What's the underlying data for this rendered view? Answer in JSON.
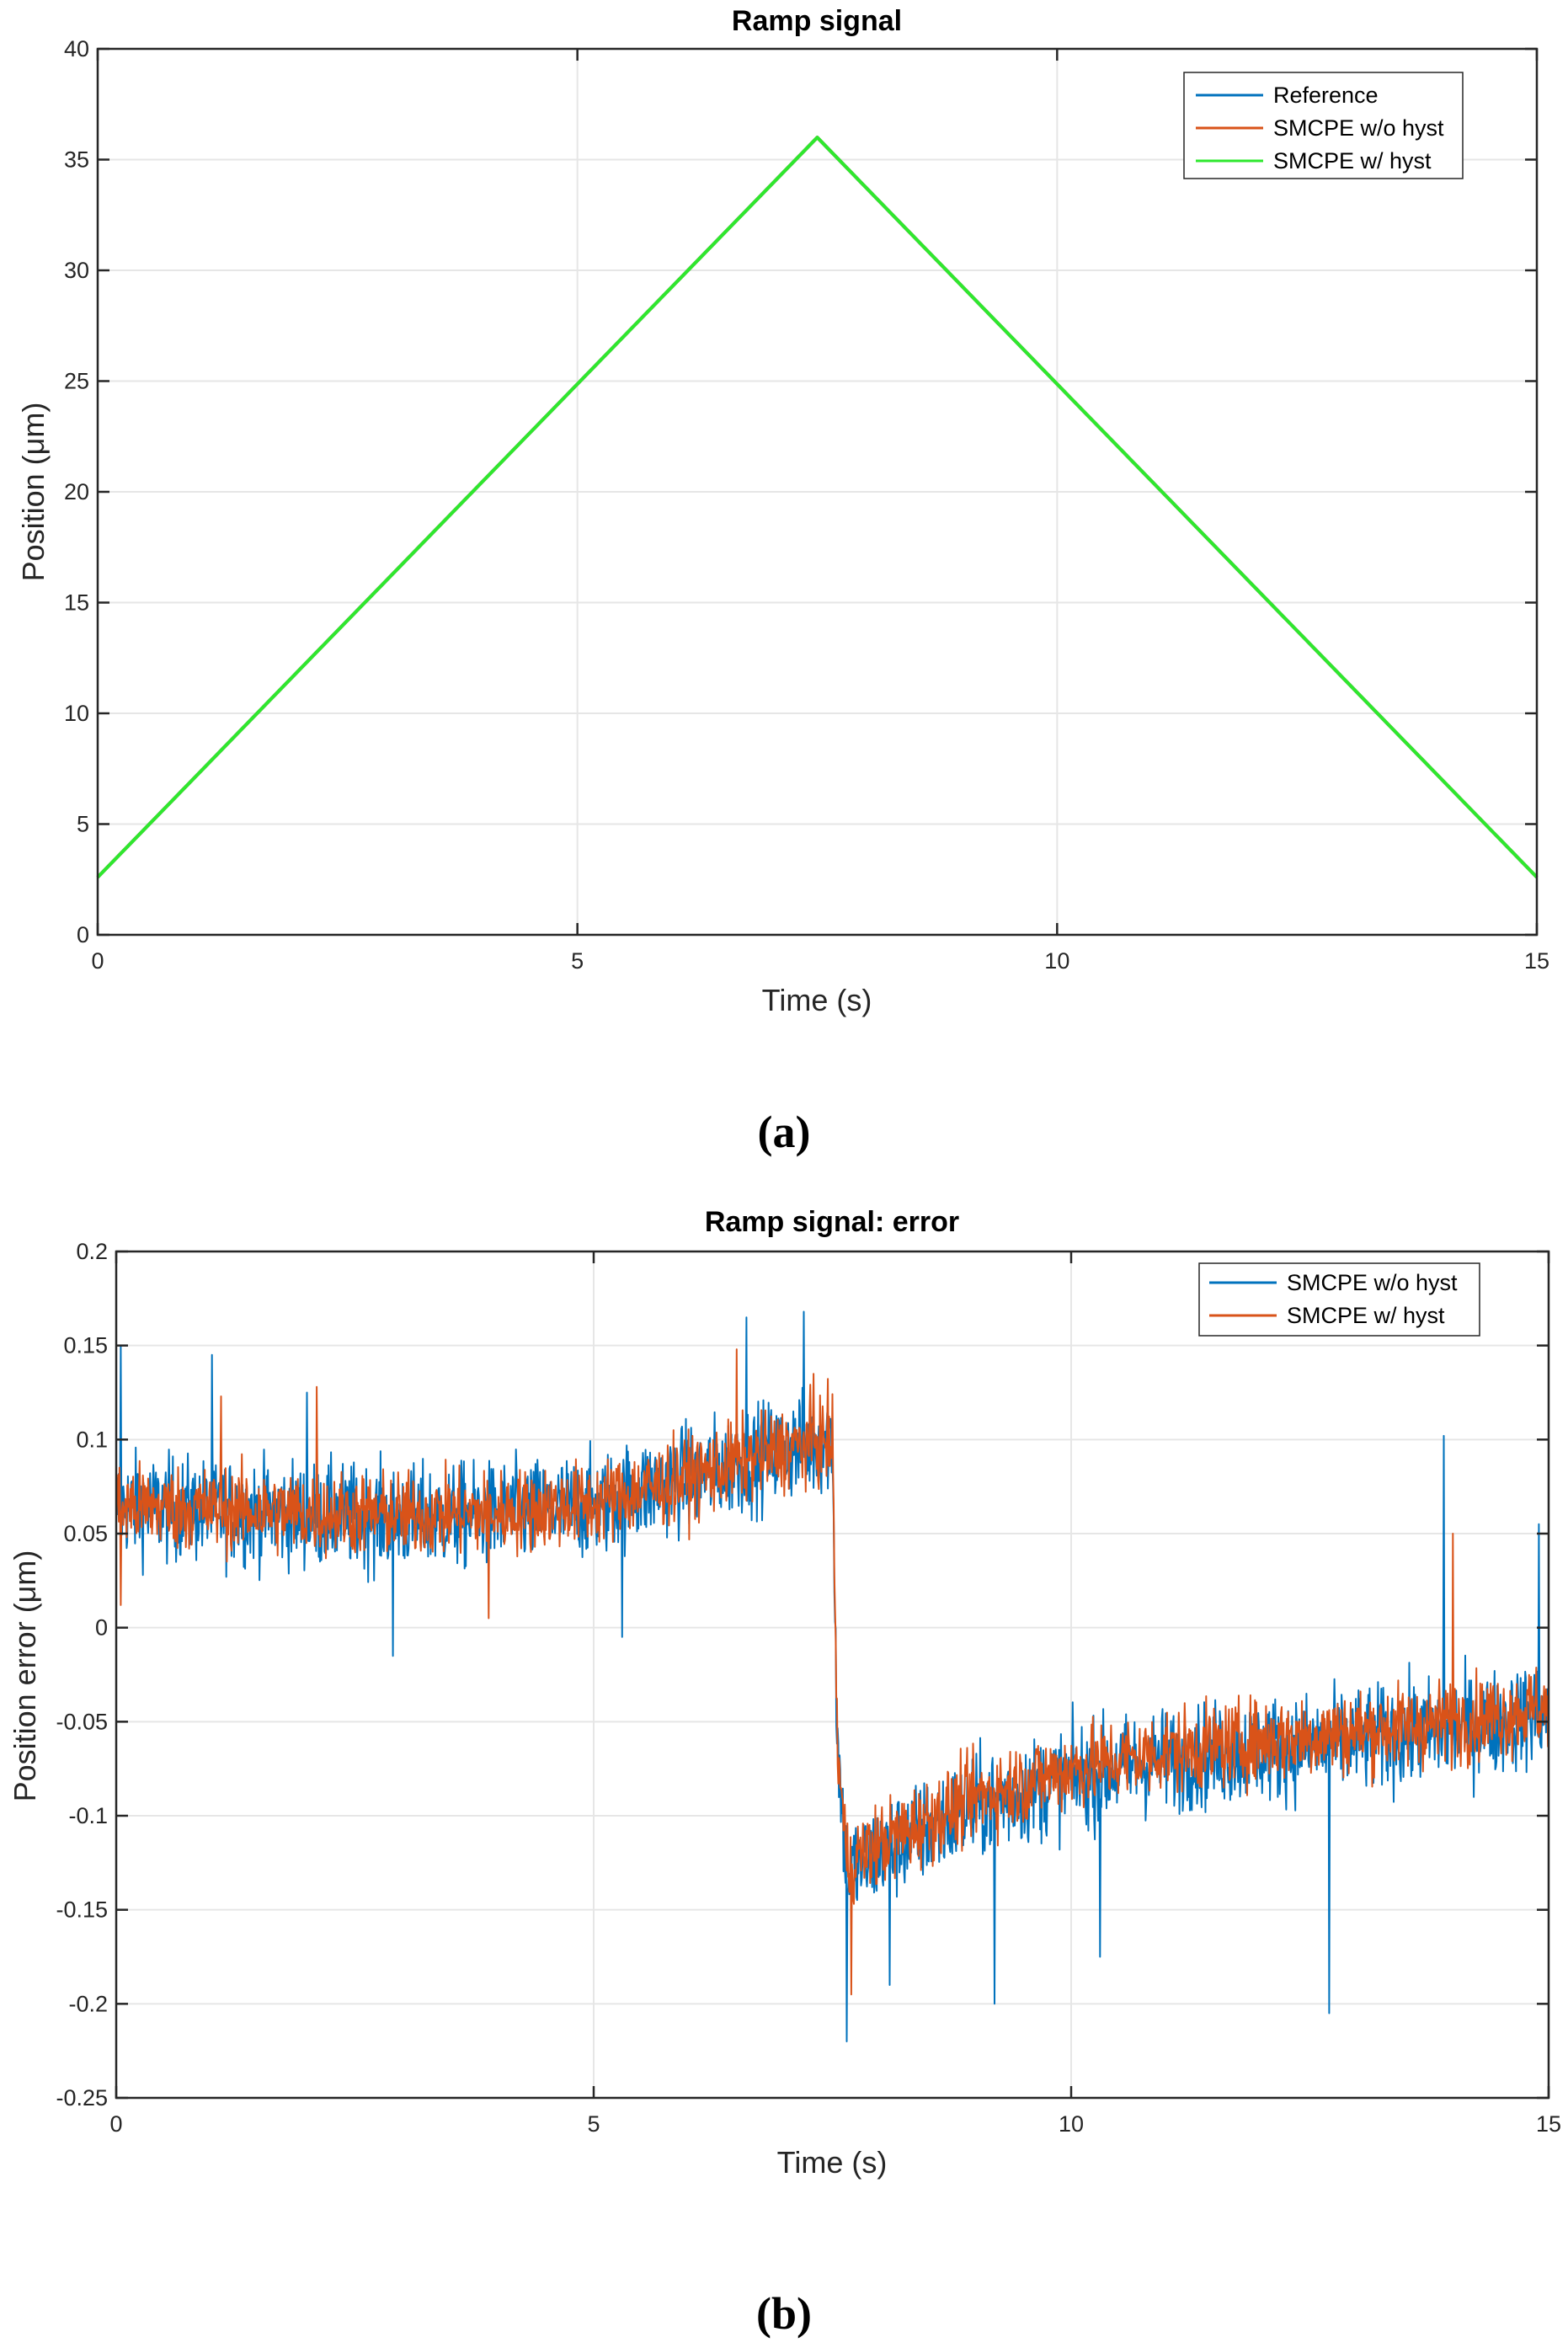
{
  "chart_data": [
    {
      "type": "line",
      "title": "Ramp signal",
      "xlabel": "Time (s)",
      "ylabel": "Position (μm)",
      "xlim": [
        0,
        15
      ],
      "ylim": [
        0,
        40
      ],
      "xticks": [
        "0",
        "5",
        "10",
        "15"
      ],
      "yticks": [
        "0",
        "5",
        "10",
        "15",
        "20",
        "25",
        "30",
        "35",
        "40"
      ],
      "grid": true,
      "legend_position": "top-right",
      "series": [
        {
          "name": "Reference",
          "color": "#0072bd",
          "x": [
            0,
            7.5,
            15
          ],
          "y": [
            2.6,
            36.0,
            2.6
          ]
        },
        {
          "name": "SMCPE w/o hyst",
          "color": "#d95319",
          "x": [
            0,
            7.5,
            15
          ],
          "y": [
            2.6,
            36.0,
            2.6
          ]
        },
        {
          "name": "SMCPE w/ hyst",
          "color": "#2ee82e",
          "x": [
            0,
            7.5,
            15
          ],
          "y": [
            2.6,
            36.0,
            2.6
          ]
        }
      ],
      "caption": "(a)"
    },
    {
      "type": "line",
      "title": "Ramp signal: error",
      "xlabel": "Time (s)",
      "ylabel": "Position error (μm)",
      "xlim": [
        0,
        15
      ],
      "ylim": [
        -0.25,
        0.2
      ],
      "xticks": [
        "0",
        "5",
        "10",
        "15"
      ],
      "yticks": [
        "-0.25",
        "-0.2",
        "-0.15",
        "-0.1",
        "-0.05",
        "0",
        "0.05",
        "0.1",
        "0.15",
        "0.2"
      ],
      "grid": true,
      "legend_position": "top-right",
      "series": [
        {
          "name": "SMCPE w/o hyst",
          "color": "#0072bd",
          "x": [
            0,
            1,
            2,
            3,
            4,
            5,
            6,
            7,
            7.5,
            7.55,
            7.65,
            8,
            9,
            10,
            11,
            12,
            13,
            14,
            15
          ],
          "y": [
            0.065,
            0.062,
            0.06,
            0.058,
            0.06,
            0.065,
            0.08,
            0.095,
            0.1,
            -0.06,
            -0.13,
            -0.12,
            -0.095,
            -0.08,
            -0.07,
            -0.065,
            -0.06,
            -0.055,
            -0.045
          ],
          "noise": 0.025,
          "spikes": [
            [
              0.05,
              0.15
            ],
            [
              1.0,
              0.145
            ],
            [
              2.0,
              0.125
            ],
            [
              2.9,
              -0.015
            ],
            [
              5.3,
              -0.005
            ],
            [
              6.6,
              0.165
            ],
            [
              7.2,
              0.168
            ],
            [
              7.65,
              -0.22
            ],
            [
              8.1,
              -0.19
            ],
            [
              9.2,
              -0.2
            ],
            [
              10.3,
              -0.175
            ],
            [
              12.7,
              -0.205
            ],
            [
              13.9,
              0.102
            ],
            [
              14.9,
              0.055
            ]
          ]
        },
        {
          "name": "SMCPE w/ hyst",
          "color": "#d95319",
          "x": [
            0,
            1,
            2,
            3,
            4,
            5,
            6,
            7,
            7.5,
            7.55,
            7.65,
            8,
            9,
            10,
            11,
            12,
            13,
            14,
            15
          ],
          "y": [
            0.065,
            0.063,
            0.061,
            0.06,
            0.061,
            0.066,
            0.08,
            0.095,
            0.1,
            -0.06,
            -0.125,
            -0.115,
            -0.09,
            -0.075,
            -0.066,
            -0.06,
            -0.055,
            -0.05,
            -0.042
          ],
          "noise": 0.02,
          "spikes": [
            [
              0.05,
              0.012
            ],
            [
              1.1,
              0.123
            ],
            [
              2.1,
              0.128
            ],
            [
              3.9,
              0.005
            ],
            [
              6.5,
              0.148
            ],
            [
              7.3,
              0.135
            ],
            [
              7.7,
              -0.195
            ],
            [
              14.0,
              0.05
            ]
          ]
        }
      ],
      "caption": "(b)"
    }
  ]
}
